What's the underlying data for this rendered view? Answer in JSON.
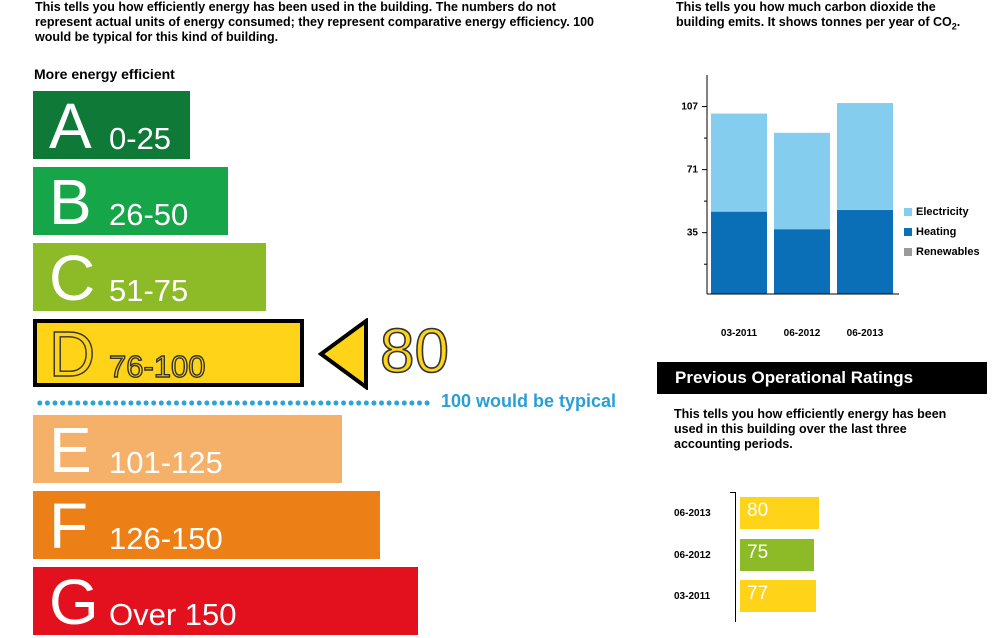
{
  "intro_text": "This tells you how efficiently energy has been used in the building. The numbers do not represent actual units of energy consumed; they represent comparative energy efficiency. 100 would be typical for this kind of building.",
  "scale_label": "More energy efficient",
  "bands": [
    {
      "letter": "A",
      "range": "0-25",
      "color": "#0f7a38"
    },
    {
      "letter": "B",
      "range": "26-50",
      "color": "#17a54a"
    },
    {
      "letter": "C",
      "range": "51-75",
      "color": "#8cbb27"
    },
    {
      "letter": "D",
      "range": "76-100",
      "color": "#ffd317"
    },
    {
      "letter": "E",
      "range": "101-125",
      "color": "#f5b06a"
    },
    {
      "letter": "F",
      "range": "126-150",
      "color": "#ec7f16"
    },
    {
      "letter": "G",
      "range": "Over 150",
      "color": "#e3101e"
    }
  ],
  "current_rating": "80",
  "typical_label": "100 would be typical",
  "co2_intro_main": "This tells you how much carbon dioxide the building emits. It shows tonnes per year of CO",
  "co2_intro_sub": "2",
  "co2_intro_end": ".",
  "chart_data": {
    "type": "bar",
    "stacked": true,
    "categories": [
      "03-2011",
      "06-2012",
      "06-2013"
    ],
    "series": [
      {
        "name": "Heating",
        "values": [
          47,
          37,
          48
        ],
        "color": "#0b6fb8"
      },
      {
        "name": "Electricity",
        "values": [
          56,
          55,
          61
        ],
        "color": "#84cdef"
      },
      {
        "name": "Renewables",
        "values": [
          0,
          0,
          0
        ],
        "color": "#9a9a9a"
      }
    ],
    "yticks": [
      "35",
      "71",
      "107"
    ],
    "ylim": [
      0,
      125
    ],
    "legend": "right"
  },
  "legend_labels": [
    "Electricity",
    "Heating",
    "Renewables"
  ],
  "legend_colors": [
    "#84cdef",
    "#0b6fb8",
    "#9a9a9a"
  ],
  "previous": {
    "title": "Previous Operational Ratings",
    "intro": "This tells you how efficiently energy has been used in this building over the last three accounting periods.",
    "rows": [
      {
        "date": "06-2013",
        "value": "80",
        "color": "#ffd317"
      },
      {
        "date": "06-2012",
        "value": "75",
        "color": "#8cbb27"
      },
      {
        "date": "03-2011",
        "value": "77",
        "color": "#ffd317"
      }
    ]
  }
}
